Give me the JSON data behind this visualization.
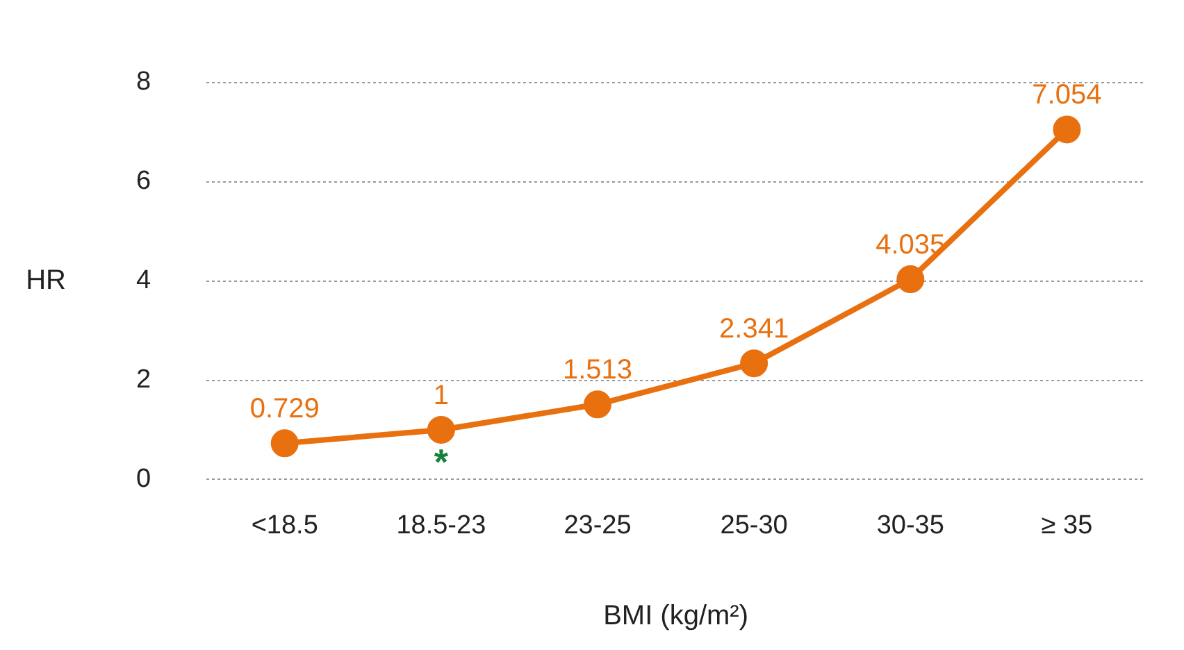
{
  "chart_data": {
    "type": "line",
    "xlabel": "BMI (kg/m²)",
    "ylabel": "HR",
    "categories": [
      "<18.5",
      "18.5-23",
      "23-25",
      "25-30",
      "30-35",
      "≥ 35"
    ],
    "series": [
      {
        "color": "#e8700f",
        "values": [
          0.729,
          1,
          1.513,
          2.341,
          4.035,
          7.054
        ]
      }
    ],
    "ylim": [
      0,
      8
    ],
    "yticks": [
      0,
      2,
      4,
      6,
      8
    ],
    "grid": "y",
    "legend": false,
    "marker": "circle",
    "line_style": "solid",
    "data_labels": true,
    "annotations": [
      {
        "text": "*",
        "x": "18.5-23",
        "y": 1
      }
    ]
  }
}
